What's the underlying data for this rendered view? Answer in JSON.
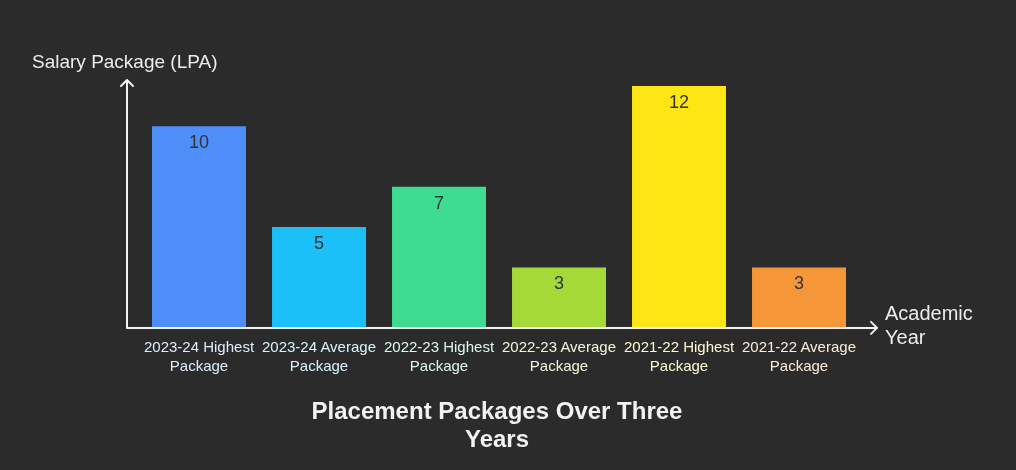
{
  "chart_data": {
    "type": "bar",
    "title": "Placement Packages Over Three Years",
    "xlabel": "Academic Year",
    "ylabel": "Salary Package (LPA)",
    "categories": [
      "2023-24 Highest Package",
      "2023-24 Average Package",
      "2022-23 Highest Package",
      "2022-23 Average Package",
      "2021-22 Highest Package",
      "2021-22 Average Package"
    ],
    "values": [
      10,
      5,
      7,
      3,
      12,
      3
    ],
    "colors": [
      "#4d8ef8",
      "#1ac0f7",
      "#3ddc91",
      "#a5d937",
      "#fde614",
      "#f59638"
    ],
    "ylim": [
      0,
      12
    ],
    "data_labels": true,
    "tick_labels": "x",
    "grid": false,
    "legend": false
  }
}
